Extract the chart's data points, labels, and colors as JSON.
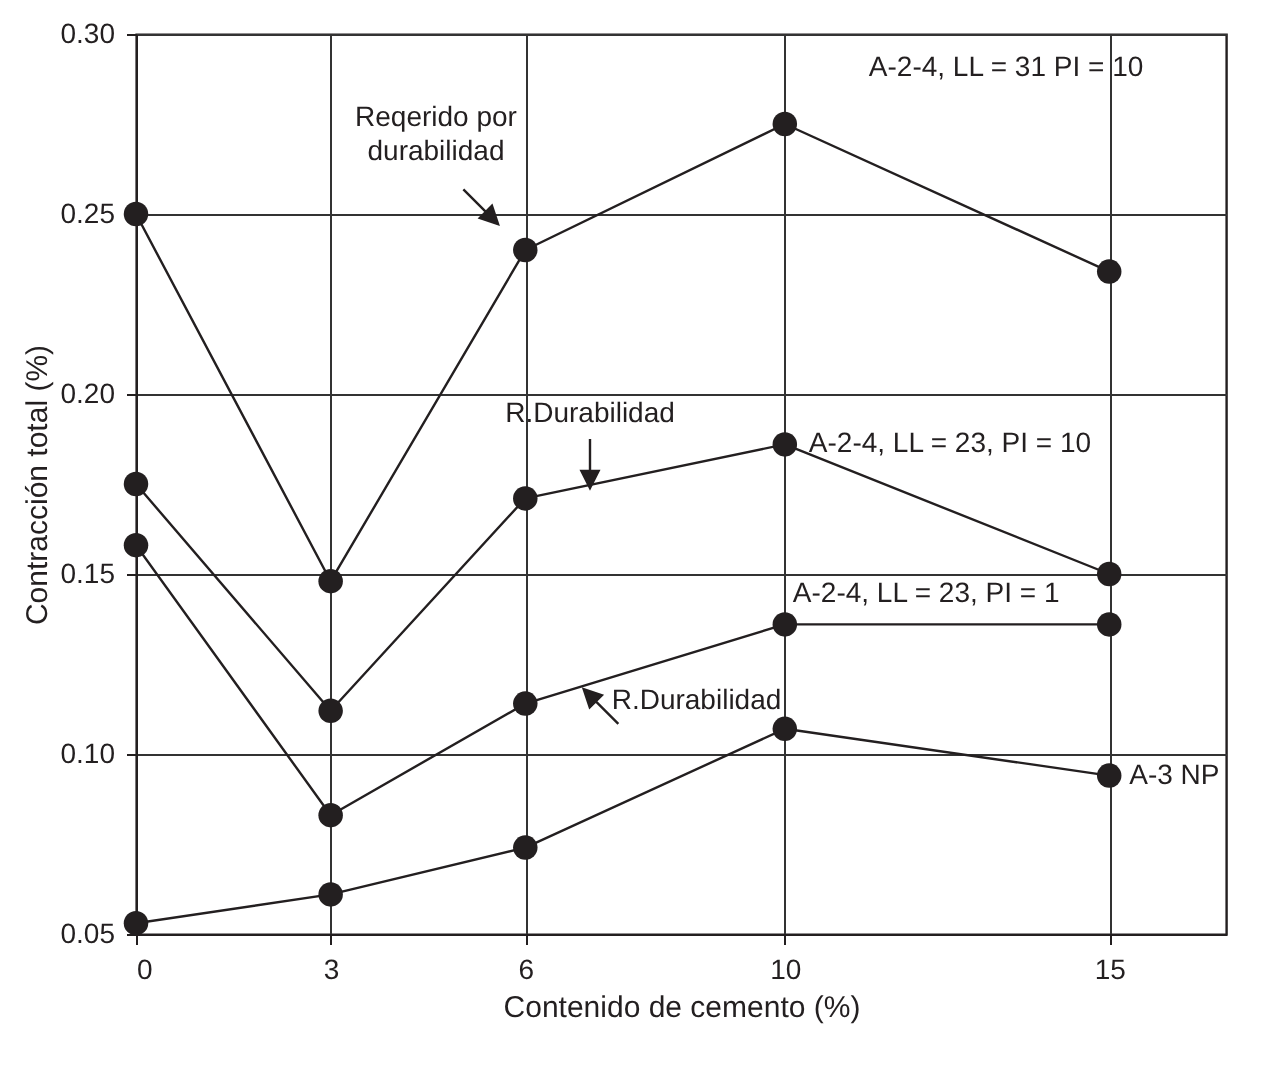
{
  "chart_data": {
    "type": "line",
    "xlabel": "Contenido de cemento (%)",
    "ylabel": "Contracción total (%)",
    "xlim": [
      0,
      16.8
    ],
    "xticks": [
      0,
      3,
      6,
      10,
      15
    ],
    "ylim": [
      0.05,
      0.3
    ],
    "yticks": [
      {
        "value": 0.05,
        "label": "0.05"
      },
      {
        "value": 0.1,
        "label": "0.10"
      },
      {
        "value": 0.15,
        "label": "0.15"
      },
      {
        "value": 0.2,
        "label": "0.20"
      },
      {
        "value": 0.25,
        "label": "0.25"
      },
      {
        "value": 0.3,
        "label": "0.30"
      }
    ],
    "x": [
      0,
      3,
      6,
      10,
      15
    ],
    "series": [
      {
        "name": "A-2-4, LL = 31 PI = 10",
        "color": "#231f20",
        "values": [
          0.25,
          0.148,
          0.24,
          0.275,
          0.234
        ]
      },
      {
        "name": "A-2-4, LL = 23, PI = 10",
        "color": "#231f20",
        "values": [
          0.175,
          0.112,
          0.171,
          0.186,
          0.15
        ]
      },
      {
        "name": "A-2-4, LL = 23, PI = 1",
        "color": "#231f20",
        "values": [
          0.158,
          0.083,
          0.114,
          0.136,
          0.136
        ]
      },
      {
        "name": "A-3 NP",
        "color": "#231f20",
        "values": [
          0.053,
          0.061,
          0.074,
          0.107,
          0.094
        ]
      }
    ],
    "annotations": [
      "Reqerido por durabilidad",
      "R.Durabilidad",
      {
        "text": "R.Durabilidad",
        "x": 6.9,
        "y": 0.118
      }
    ],
    "grid": true,
    "marker": "circle",
    "line_style": "solid"
  }
}
